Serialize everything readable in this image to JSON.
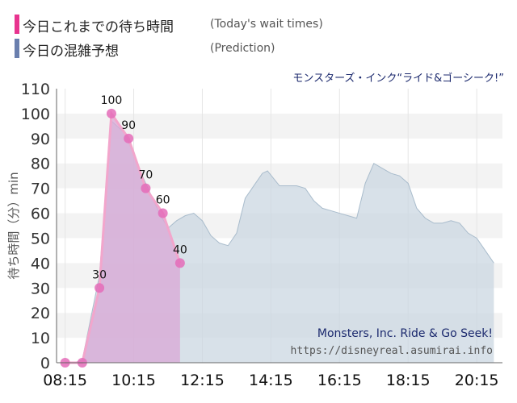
{
  "legend": [
    {
      "label": "今日これまでの待ち時間",
      "sub": "(Today's wait times)",
      "color": "#e8348f"
    },
    {
      "label": "今日の混雑予想",
      "sub": "(Prediction)",
      "color": "#6a7fae"
    }
  ],
  "attraction_title": "モンスターズ・インク“ライド&ゴーシーク!”",
  "watermark": {
    "line1": "Monsters, Inc. Ride & Go Seek!",
    "line2": "https://disneyreal.asumirai.info"
  },
  "chart_data": {
    "type": "area",
    "ylabel": "待ち時間（分）min",
    "ylim": [
      0,
      110
    ],
    "yticks": [
      0,
      10,
      20,
      30,
      40,
      50,
      60,
      70,
      80,
      90,
      100,
      110
    ],
    "xlim": [
      8.0,
      21.0
    ],
    "xticks": [
      {
        "t": 8.25,
        "label": "08:15"
      },
      {
        "t": 10.25,
        "label": "10:15"
      },
      {
        "t": 12.25,
        "label": "12:15"
      },
      {
        "t": 14.25,
        "label": "14:15"
      },
      {
        "t": 16.25,
        "label": "16:15"
      },
      {
        "t": 18.25,
        "label": "18:15"
      },
      {
        "t": 20.25,
        "label": "20:15"
      }
    ],
    "series": [
      {
        "role": "prediction",
        "color": "#a9bccc",
        "points": [
          [
            8.25,
            0
          ],
          [
            8.5,
            0
          ],
          [
            8.75,
            1
          ],
          [
            9.25,
            35
          ],
          [
            9.6,
            97
          ],
          [
            10.0,
            92
          ],
          [
            10.5,
            75
          ],
          [
            11.0,
            60
          ],
          [
            11.25,
            54
          ],
          [
            11.5,
            57
          ],
          [
            11.75,
            59
          ],
          [
            12.0,
            60
          ],
          [
            12.25,
            57
          ],
          [
            12.5,
            51
          ],
          [
            12.75,
            48
          ],
          [
            13.0,
            47
          ],
          [
            13.25,
            52
          ],
          [
            13.5,
            66
          ],
          [
            13.75,
            71
          ],
          [
            14.0,
            76
          ],
          [
            14.15,
            77
          ],
          [
            14.5,
            71
          ],
          [
            14.75,
            71
          ],
          [
            15.0,
            71
          ],
          [
            15.25,
            70
          ],
          [
            15.5,
            65
          ],
          [
            15.75,
            62
          ],
          [
            16.0,
            61
          ],
          [
            16.25,
            60
          ],
          [
            16.5,
            59
          ],
          [
            16.75,
            58
          ],
          [
            17.0,
            72
          ],
          [
            17.25,
            80
          ],
          [
            17.5,
            78
          ],
          [
            17.75,
            76
          ],
          [
            18.0,
            75
          ],
          [
            18.25,
            72
          ],
          [
            18.5,
            62
          ],
          [
            18.75,
            58
          ],
          [
            19.0,
            56
          ],
          [
            19.25,
            56
          ],
          [
            19.5,
            57
          ],
          [
            19.75,
            56
          ],
          [
            20.0,
            52
          ],
          [
            20.25,
            50
          ],
          [
            20.5,
            45
          ],
          [
            20.75,
            40
          ]
        ]
      },
      {
        "role": "today",
        "color": "#e8348f",
        "points": [
          [
            8.25,
            0
          ],
          [
            8.75,
            0
          ],
          [
            9.25,
            30
          ],
          [
            9.6,
            100
          ],
          [
            10.1,
            90
          ],
          [
            10.6,
            70
          ],
          [
            11.1,
            60
          ],
          [
            11.6,
            40
          ]
        ],
        "labels": [
          "",
          "",
          "30",
          "100",
          "90",
          "70",
          "60",
          "40"
        ]
      }
    ]
  }
}
